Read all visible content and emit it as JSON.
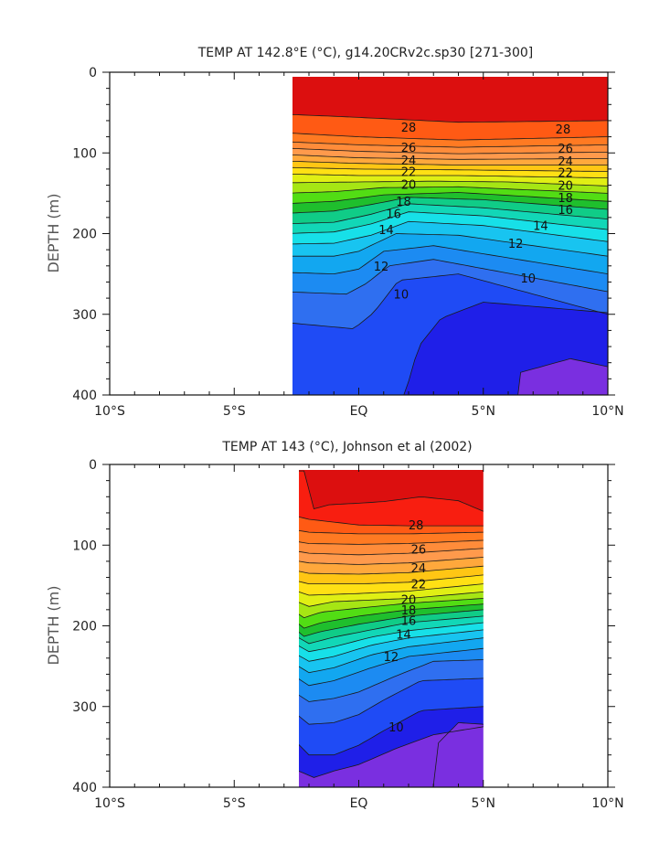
{
  "chart_data": [
    {
      "type": "contour",
      "title": "TEMP AT 142.8°E (°C), g14.20CRv2c.sp30 [271-300]",
      "xlabel": "",
      "ylabel": "DEPTH (m)",
      "x_unit": "degrees latitude",
      "y_unit": "m",
      "xlim": [
        -10,
        10
      ],
      "ylim": [
        400,
        0
      ],
      "y_reversed": true,
      "x_ticks": [
        "10°S",
        "5°S",
        "EQ",
        "5°N",
        "10°N"
      ],
      "x_tick_values": [
        -10,
        -5,
        0,
        5,
        10
      ],
      "y_ticks": [
        "0",
        "100",
        "200",
        "300",
        "400"
      ],
      "y_tick_values": [
        0,
        100,
        200,
        300,
        400
      ],
      "data_extent": {
        "lat": [
          -3,
          10
        ],
        "depth": [
          5,
          400
        ]
      },
      "contour_interval": 1,
      "labeled_contours": [
        {
          "text": "28",
          "lat": 2.0,
          "depth": 68
        },
        {
          "text": "28",
          "lat": 8.2,
          "depth": 70
        },
        {
          "text": "26",
          "lat": 2.0,
          "depth": 93
        },
        {
          "text": "26",
          "lat": 8.3,
          "depth": 94
        },
        {
          "text": "24",
          "lat": 2.0,
          "depth": 109
        },
        {
          "text": "24",
          "lat": 8.3,
          "depth": 110
        },
        {
          "text": "22",
          "lat": 2.0,
          "depth": 123
        },
        {
          "text": "22",
          "lat": 8.3,
          "depth": 124
        },
        {
          "text": "20",
          "lat": 2.0,
          "depth": 139
        },
        {
          "text": "20",
          "lat": 8.3,
          "depth": 140
        },
        {
          "text": "18",
          "lat": 1.8,
          "depth": 160
        },
        {
          "text": "18",
          "lat": 8.3,
          "depth": 155
        },
        {
          "text": "16",
          "lat": 1.4,
          "depth": 175
        },
        {
          "text": "16",
          "lat": 8.3,
          "depth": 170
        },
        {
          "text": "14",
          "lat": 1.1,
          "depth": 195
        },
        {
          "text": "14",
          "lat": 7.3,
          "depth": 190
        },
        {
          "text": "12",
          "lat": 0.9,
          "depth": 240
        },
        {
          "text": "12",
          "lat": 6.3,
          "depth": 212
        },
        {
          "text": "10",
          "lat": 1.7,
          "depth": 275
        },
        {
          "text": "10",
          "lat": 6.8,
          "depth": 255
        }
      ]
    },
    {
      "type": "contour",
      "title": "TEMP AT 143 (°C), Johnson et al (2002)",
      "xlabel": "",
      "ylabel": "DEPTH (m)",
      "x_unit": "degrees latitude",
      "y_unit": "m",
      "xlim": [
        -10,
        10
      ],
      "ylim": [
        400,
        0
      ],
      "y_reversed": true,
      "x_ticks": [
        "10°S",
        "5°S",
        "EQ",
        "5°N",
        "10°N"
      ],
      "x_tick_values": [
        -10,
        -5,
        0,
        5,
        10
      ],
      "y_ticks": [
        "0",
        "100",
        "200",
        "300",
        "400"
      ],
      "y_tick_values": [
        0,
        100,
        200,
        300,
        400
      ],
      "data_extent": {
        "lat": [
          -2.8,
          5
        ],
        "depth": [
          5,
          400
        ]
      },
      "contour_interval": 1,
      "labeled_contours": [
        {
          "text": "28",
          "lat": 2.3,
          "depth": 75
        },
        {
          "text": "26",
          "lat": 2.4,
          "depth": 105
        },
        {
          "text": "24",
          "lat": 2.4,
          "depth": 128
        },
        {
          "text": "22",
          "lat": 2.4,
          "depth": 148
        },
        {
          "text": "20",
          "lat": 2.0,
          "depth": 167
        },
        {
          "text": "18",
          "lat": 2.0,
          "depth": 180
        },
        {
          "text": "16",
          "lat": 2.0,
          "depth": 193
        },
        {
          "text": "14",
          "lat": 1.8,
          "depth": 210
        },
        {
          "text": "12",
          "lat": 1.3,
          "depth": 238
        },
        {
          "text": "10",
          "lat": 1.5,
          "depth": 325
        }
      ]
    }
  ],
  "colorscale": {
    "levels": [
      {
        "from": 7,
        "to": 8,
        "color": "#7a2fe0"
      },
      {
        "from": 8,
        "to": 9,
        "color": "#1f1fe8"
      },
      {
        "from": 9,
        "to": 10,
        "color": "#1f4bf5"
      },
      {
        "from": 10,
        "to": 11,
        "color": "#2f6ff0"
      },
      {
        "from": 11,
        "to": 12,
        "color": "#1c8bf2"
      },
      {
        "from": 12,
        "to": 13,
        "color": "#12a7f0"
      },
      {
        "from": 13,
        "to": 14,
        "color": "#18c4f0"
      },
      {
        "from": 14,
        "to": 15,
        "color": "#17e0e8"
      },
      {
        "from": 15,
        "to": 16,
        "color": "#12d7b7"
      },
      {
        "from": 16,
        "to": 17,
        "color": "#10cc87"
      },
      {
        "from": 17,
        "to": 18,
        "color": "#1fbf2d"
      },
      {
        "from": 18,
        "to": 19,
        "color": "#52dd14"
      },
      {
        "from": 19,
        "to": 20,
        "color": "#a6e614"
      },
      {
        "from": 20,
        "to": 21,
        "color": "#e0ef14"
      },
      {
        "from": 21,
        "to": 22,
        "color": "#ffe014"
      },
      {
        "from": 22,
        "to": 23,
        "color": "#ffc614"
      },
      {
        "from": 23,
        "to": 24,
        "color": "#ffa83c"
      },
      {
        "from": 24,
        "to": 25,
        "color": "#ff9a4c"
      },
      {
        "from": 25,
        "to": 26,
        "color": "#ff8c3a"
      },
      {
        "from": 26,
        "to": 27,
        "color": "#ff7a22"
      },
      {
        "from": 27,
        "to": 28,
        "color": "#ff5a14"
      },
      {
        "from": 28,
        "to": 29,
        "color": "#f81e10"
      },
      {
        "from": 29,
        "to": 31,
        "color": "#dc0f0f"
      }
    ]
  }
}
